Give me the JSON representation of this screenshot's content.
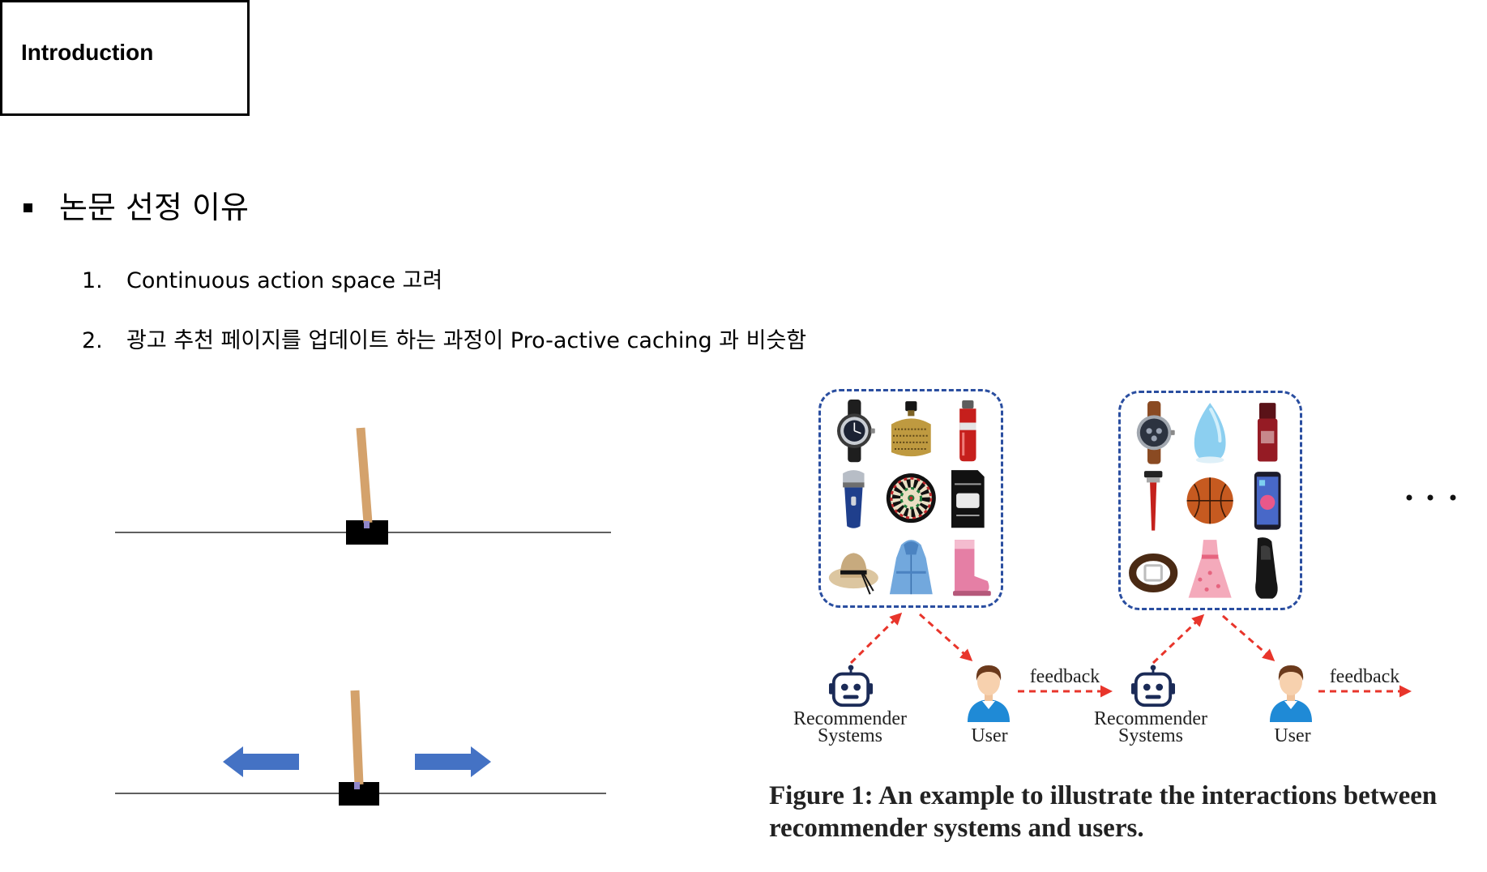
{
  "slide": {
    "section_title": "Introduction",
    "bullet_heading": "논문 선정 이유",
    "list_items": [
      {
        "number": "1.",
        "text": "Continuous action space 고려"
      },
      {
        "number": "2.",
        "text": "광고 추천 페이지를 업데이트 하는 과정이 Pro-active caching 과 비슷함"
      }
    ]
  },
  "cartpole": {
    "colors": {
      "pole": "#d4a26c",
      "cart": "#000000",
      "axle": "#8f86c9",
      "track": "#000000",
      "arrow": "#4472c4"
    },
    "push_arrows": [
      "arrow-left-icon",
      "arrow-right-icon"
    ]
  },
  "figure": {
    "colors": {
      "frame": "#2a4ea0",
      "connector": "#e8352b",
      "robot": "#1b2b57",
      "user_shirt": "#1f8ad6"
    },
    "steps": [
      {
        "item_icons": [
          "watch-icon",
          "perfume-bottle-icon",
          "water-bottle-icon",
          "electric-shaver-icon",
          "dartboard-icon",
          "micro-sd-card-icon",
          "sun-hat-icon",
          "bathrobe-icon",
          "boot-icon"
        ],
        "recommender_label": [
          "Recommender",
          "Systems"
        ],
        "user_label": "User",
        "feedback_label": "feedback"
      },
      {
        "item_icons": [
          "leather-watch-icon",
          "humidifier-icon",
          "lip-tint-icon",
          "razor-icon",
          "basketball-icon",
          "smartphone-icon",
          "belt-icon",
          "dress-icon",
          "dress-shoe-icon"
        ],
        "recommender_label": [
          "Recommender",
          "Systems"
        ],
        "user_label": "User",
        "feedback_label": "feedback"
      }
    ],
    "more_icon": "ellipsis-icon",
    "caption_lines": [
      "Figure 1: An example to illustrate the interactions between",
      "recommender systems and users."
    ]
  }
}
